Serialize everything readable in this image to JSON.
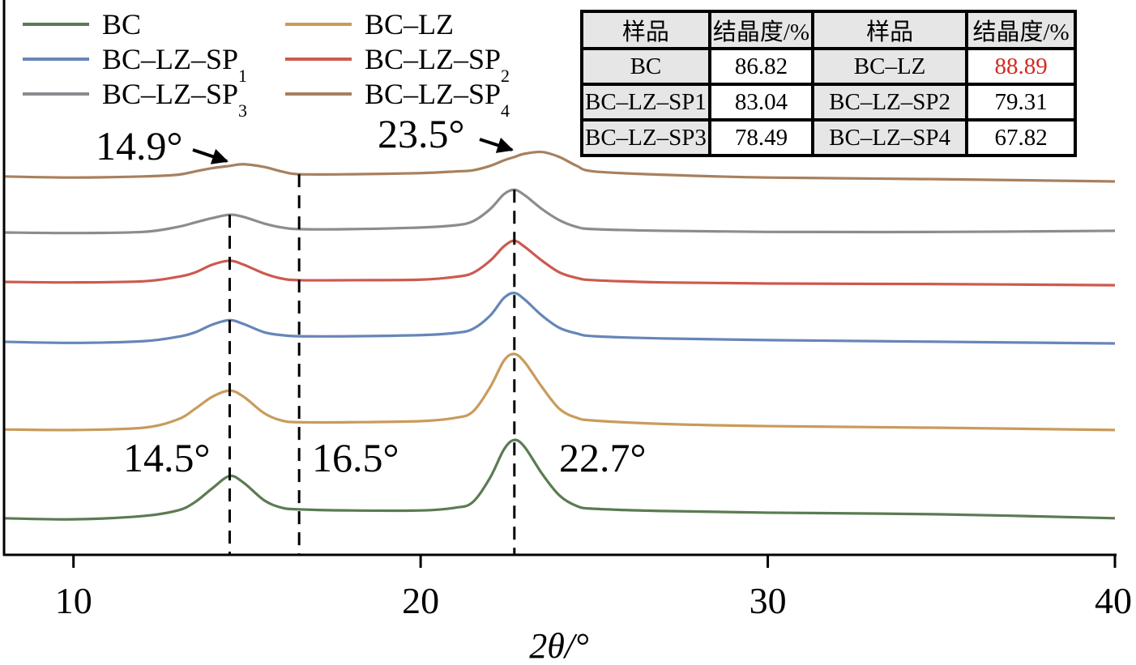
{
  "chart_data": {
    "type": "line",
    "title": "",
    "xlabel": "2θ/°",
    "ylabel": "",
    "xlim": [
      8,
      40
    ],
    "ylim": [
      0,
      100
    ],
    "y_units": "a.u.",
    "xticks": [
      10,
      20,
      30,
      40
    ],
    "xtick_labels": [
      "10",
      "20",
      "30",
      "40"
    ],
    "grid": false,
    "legend_position": "top-left",
    "x": [
      8,
      10,
      12,
      13,
      13.5,
      14,
      14.5,
      14.9,
      15.5,
      16,
      16.5,
      18,
      20,
      21,
      21.5,
      22,
      22.4,
      22.7,
      23,
      23.5,
      24,
      24.5,
      25,
      27,
      30,
      35,
      40
    ],
    "series": [
      {
        "name": "BC",
        "legend_main": "BC",
        "legend_sub": "",
        "color": "#5b7b52",
        "values": [
          6.6,
          6.4,
          7.0,
          8.0,
          9.5,
          12.0,
          14.2,
          13.0,
          9.8,
          8.5,
          8.2,
          8.0,
          8.0,
          8.5,
          9.5,
          13.9,
          19.0,
          20.7,
          19.4,
          14.6,
          10.7,
          8.8,
          8.3,
          7.9,
          7.6,
          7.3,
          6.6
        ]
      },
      {
        "name": "BC-LZ",
        "legend_main": "BC–LZ",
        "legend_sub": "",
        "color": "#c99b5c",
        "values": [
          22.6,
          22.5,
          22.9,
          24.4,
          26.3,
          28.5,
          29.6,
          28.5,
          25.5,
          24.2,
          23.9,
          23.9,
          24.1,
          24.7,
          25.8,
          30.2,
          35.0,
          36.2,
          34.7,
          30.2,
          26.3,
          24.7,
          24.2,
          23.6,
          23.2,
          22.9,
          22.5
        ]
      },
      {
        "name": "BC-LZ-SP1",
        "legend_main": "BC–LZ–SP",
        "legend_sub": "1",
        "color": "#6686b8",
        "values": [
          38.4,
          38.2,
          38.5,
          39.3,
          40.1,
          41.5,
          42.3,
          41.6,
          40.1,
          39.6,
          39.4,
          39.4,
          39.6,
          40.0,
          40.7,
          43.1,
          46.3,
          47.2,
          46.0,
          43.1,
          40.9,
          39.9,
          39.4,
          39.0,
          38.7,
          38.4,
          38.1
        ]
      },
      {
        "name": "BC-LZ-SP2",
        "legend_main": "BC–LZ–SP",
        "legend_sub": "2",
        "color": "#cc5a4f",
        "values": [
          49.2,
          49.1,
          49.3,
          50.1,
          50.9,
          52.3,
          53.0,
          52.3,
          50.7,
          49.8,
          49.5,
          49.5,
          49.6,
          50.1,
          50.8,
          53.0,
          55.6,
          56.6,
          55.5,
          53.0,
          50.9,
          49.9,
          49.5,
          49.1,
          48.9,
          48.8,
          48.6
        ]
      },
      {
        "name": "BC-LZ-SP3",
        "legend_main": "BC–LZ–SP",
        "legend_sub": "3",
        "color": "#8a8c90",
        "values": [
          58.1,
          58.0,
          58.2,
          59.1,
          59.9,
          60.7,
          61.3,
          60.9,
          59.7,
          59.0,
          58.7,
          58.7,
          59.0,
          59.4,
          60.1,
          62.3,
          65.0,
          65.8,
          64.8,
          62.3,
          60.3,
          59.1,
          58.7,
          58.4,
          58.2,
          58.2,
          58.4
        ]
      },
      {
        "name": "BC-LZ-SP4",
        "legend_main": "BC–LZ–SP",
        "legend_sub": "4",
        "color": "#a8805f",
        "values": [
          68.2,
          68.0,
          68.2,
          68.5,
          69.1,
          69.7,
          70.1,
          70.4,
          69.9,
          69.1,
          68.6,
          68.6,
          68.8,
          69.1,
          69.3,
          70.1,
          71.1,
          71.7,
          72.3,
          72.6,
          71.7,
          70.1,
          69.1,
          68.5,
          68.0,
          67.7,
          67.3
        ]
      }
    ],
    "reference_lines": [
      {
        "x": 14.5,
        "from_series": "BC-LZ-SP3"
      },
      {
        "x": 16.5,
        "from_series": "BC-LZ-SP4"
      },
      {
        "x": 22.7,
        "from_series": "BC-LZ-SP3"
      }
    ],
    "annotations": [
      {
        "text": "14.9°",
        "x": 14.9,
        "y": 70.4,
        "arrow": true
      },
      {
        "text": "23.5°",
        "x": 23.5,
        "y": 72.6,
        "arrow": true
      },
      {
        "text": "14.5°",
        "x": 14.5,
        "y": 17
      },
      {
        "text": "16.5°",
        "x": 16.5,
        "y": 17
      },
      {
        "text": "22.7°",
        "x": 22.7,
        "y": 17
      }
    ],
    "inset_table": {
      "headers": [
        "样品",
        "结晶度/%",
        "样品",
        "结晶度/%"
      ],
      "rows": [
        [
          "BC",
          "86.82",
          "BC–LZ",
          "88.89"
        ],
        [
          "BC–LZ–SP1",
          "83.04",
          "BC–LZ–SP2",
          "79.31"
        ],
        [
          "BC–LZ–SP3",
          "78.49",
          "BC–LZ–SP4",
          "67.82"
        ]
      ],
      "highlight_color": "#d42a22",
      "highlight_cell": "BC–LZ"
    }
  }
}
